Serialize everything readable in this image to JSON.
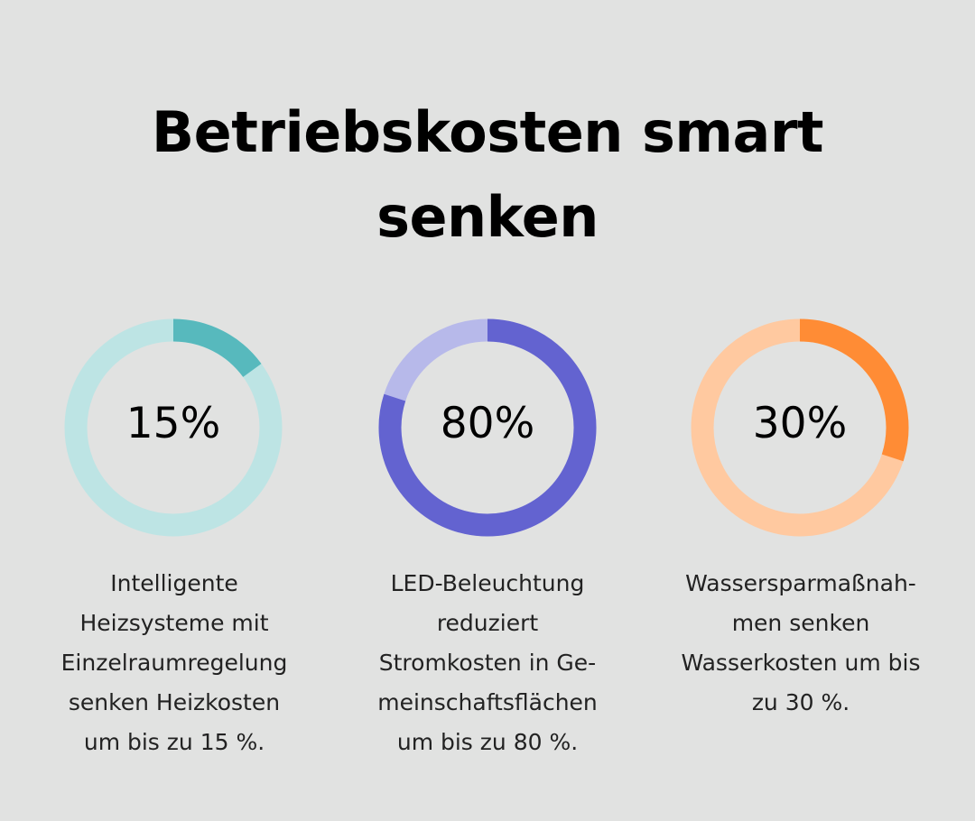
{
  "title": "Betriebskosten smart senken",
  "chart_data": [
    {
      "type": "pie",
      "values": [
        15
      ],
      "max": 100,
      "label": "15%",
      "caption": "Intelligente\nHeizsysteme mit\nEinzelraumregelung\nsenken Heizkosten\num bis zu 15 %.",
      "colors": {
        "fill": "#57b9bd",
        "track": "#bde4e4"
      }
    },
    {
      "type": "pie",
      "values": [
        80
      ],
      "max": 100,
      "label": "80%",
      "caption": "LED-Beleuchtung\nreduziert\nStromkosten in Ge-\nmeinschaftsflächen\num bis zu 80 %.",
      "colors": {
        "fill": "#6363d0",
        "track": "#b7b9ea"
      }
    },
    {
      "type": "pie",
      "values": [
        30
      ],
      "max": 100,
      "label": "30%",
      "caption": "Wassersparmaßnah-\nmen senken\nWasserkosten um bis\nzu 30 %.",
      "colors": {
        "fill": "#ff8c35",
        "track": "#ffc9a0"
      }
    }
  ]
}
